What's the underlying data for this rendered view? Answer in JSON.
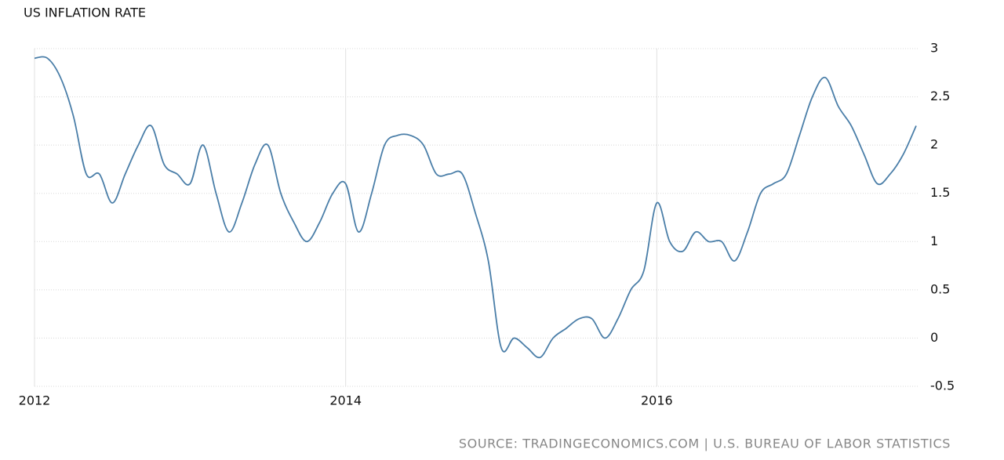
{
  "chart_data": {
    "type": "line",
    "title": "US INFLATION RATE",
    "source": "SOURCE: TRADINGECONOMICS.COM | U.S. BUREAU OF LABOR STATISTICS",
    "x": [
      2012,
      2012.083,
      2012.167,
      2012.25,
      2012.333,
      2012.417,
      2012.5,
      2012.583,
      2012.667,
      2012.75,
      2012.833,
      2012.917,
      2013,
      2013.083,
      2013.167,
      2013.25,
      2013.333,
      2013.417,
      2013.5,
      2013.583,
      2013.667,
      2013.75,
      2013.833,
      2013.917,
      2014,
      2014.083,
      2014.167,
      2014.25,
      2014.333,
      2014.417,
      2014.5,
      2014.583,
      2014.667,
      2014.75,
      2014.833,
      2014.917,
      2015,
      2015.083,
      2015.167,
      2015.25,
      2015.333,
      2015.417,
      2015.5,
      2015.583,
      2015.667,
      2015.75,
      2015.833,
      2015.917,
      2016,
      2016.083,
      2016.167,
      2016.25,
      2016.333,
      2016.417,
      2016.5,
      2016.583,
      2016.667,
      2016.75,
      2016.833,
      2016.917,
      2017,
      2017.083,
      2017.167,
      2017.25,
      2017.333,
      2017.417,
      2017.5,
      2017.583,
      2017.667
    ],
    "series": [
      {
        "name": "US Inflation Rate",
        "color": "#4a7ea8",
        "values": [
          2.9,
          2.9,
          2.7,
          2.3,
          1.7,
          1.7,
          1.4,
          1.7,
          2.0,
          2.2,
          1.8,
          1.7,
          1.6,
          2.0,
          1.5,
          1.1,
          1.4,
          1.8,
          2.0,
          1.5,
          1.2,
          1.0,
          1.2,
          1.5,
          1.6,
          1.1,
          1.5,
          2.0,
          2.1,
          2.1,
          2.0,
          1.7,
          1.7,
          1.7,
          1.3,
          0.8,
          -0.1,
          0.0,
          -0.1,
          -0.2,
          0.0,
          0.1,
          0.2,
          0.2,
          0.0,
          0.2,
          0.5,
          0.7,
          1.4,
          1.0,
          0.9,
          1.1,
          1.0,
          1.0,
          0.8,
          1.1,
          1.5,
          1.6,
          1.7,
          2.1,
          2.5,
          2.7,
          2.4,
          2.2,
          1.9,
          1.6,
          1.7,
          1.9,
          2.2
        ]
      }
    ],
    "xlim": [
      2012,
      2017.667
    ],
    "xticks": [
      2012,
      2014,
      2016
    ],
    "ylim": [
      -0.5,
      3
    ],
    "yticks": [
      3,
      2.5,
      2,
      1.5,
      1,
      0.5,
      0,
      -0.5
    ],
    "grid": true
  }
}
